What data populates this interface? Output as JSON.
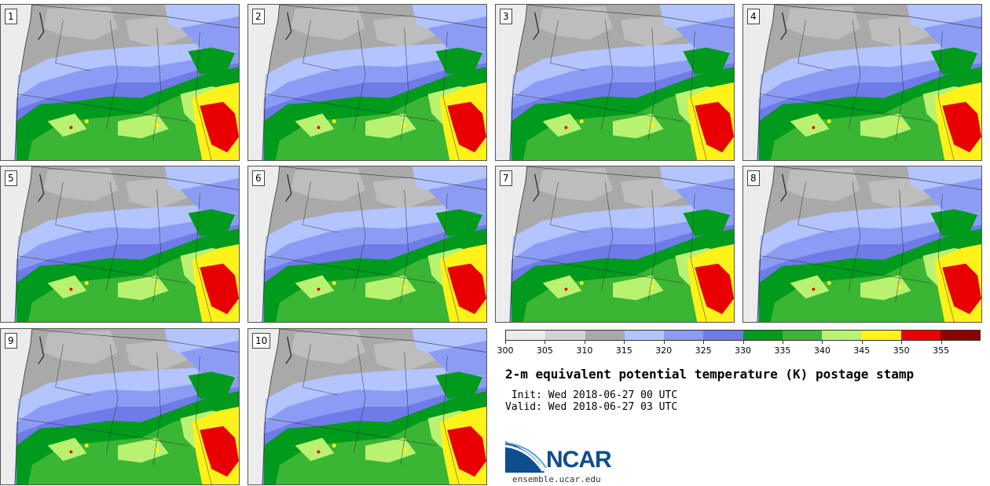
{
  "panels": [
    {
      "label": "1"
    },
    {
      "label": "2"
    },
    {
      "label": "3"
    },
    {
      "label": "4"
    },
    {
      "label": "5"
    },
    {
      "label": "6"
    },
    {
      "label": "7"
    },
    {
      "label": "8"
    },
    {
      "label": "9"
    },
    {
      "label": "10"
    }
  ],
  "colorbar": {
    "ticks": [
      "300",
      "305",
      "310",
      "315",
      "320",
      "325",
      "330",
      "335",
      "340",
      "345",
      "350",
      "355"
    ],
    "colors": [
      "#ebebeb",
      "#d2d2d2",
      "#a9a9a9",
      "#b3c4ff",
      "#8c9cf5",
      "#6f7be6",
      "#009a1c",
      "#3ab534",
      "#b9f270",
      "#fff21a",
      "#e80000",
      "#8b0000"
    ]
  },
  "title": "2-m equivalent potential temperature (K) postage stamp",
  "init": " Init: Wed 2018-06-27 00 UTC",
  "valid": "Valid: Wed 2018-06-27 03 UTC",
  "logo": {
    "text": "NCAR",
    "url": "ensemble.ucar.edu"
  }
}
